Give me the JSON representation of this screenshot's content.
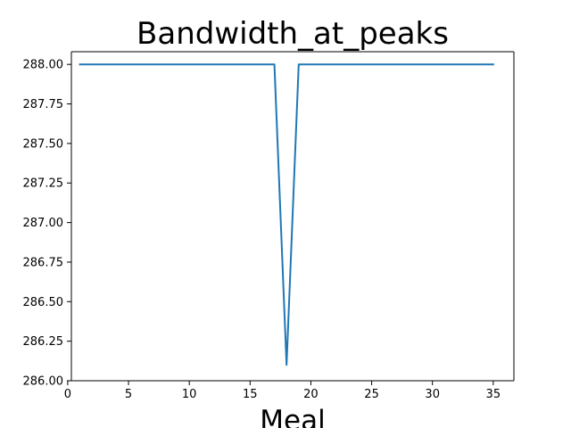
{
  "chart_data": {
    "type": "line",
    "title": "Bandwidth_at_peaks",
    "xlabel": "Meal",
    "ylabel": "",
    "xlim": [
      0.3,
      36.7
    ],
    "ylim": [
      286.0,
      288.08
    ],
    "x_ticks": [
      0,
      5,
      10,
      15,
      20,
      25,
      30,
      35
    ],
    "y_ticks": [
      286.0,
      286.25,
      286.5,
      286.75,
      287.0,
      287.25,
      287.5,
      287.75,
      288.0
    ],
    "x_tick_labels": [
      "0",
      "5",
      "10",
      "15",
      "20",
      "25",
      "30",
      "35"
    ],
    "y_tick_labels": [
      "286.00",
      "286.25",
      "286.50",
      "286.75",
      "287.00",
      "287.25",
      "287.50",
      "287.75",
      "288.00"
    ],
    "grid": false,
    "series": [
      {
        "color": "#1f77b4",
        "x": [
          1,
          2,
          3,
          4,
          5,
          6,
          7,
          8,
          9,
          10,
          11,
          12,
          13,
          14,
          15,
          16,
          17,
          18,
          19,
          20,
          21,
          22,
          23,
          24,
          25,
          26,
          27,
          28,
          29,
          30,
          31,
          32,
          33,
          34,
          35
        ],
        "y": [
          288,
          288,
          288,
          288,
          288,
          288,
          288,
          288,
          288,
          288,
          288,
          288,
          288,
          288,
          288,
          288,
          288,
          286.1,
          288,
          288,
          288,
          288,
          288,
          288,
          288,
          288,
          288,
          288,
          288,
          288,
          288,
          288,
          288,
          288,
          288
        ]
      }
    ]
  }
}
